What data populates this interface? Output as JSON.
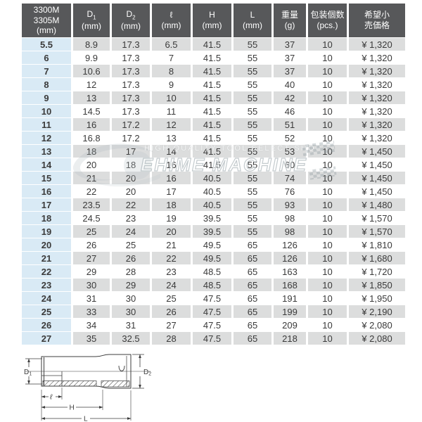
{
  "colors": {
    "header_bg": "#57585a",
    "header_text": "#ffffff",
    "row_gray": "#dcdddd",
    "row_white": "#ffffff",
    "size_column_bg": "#d9eaf5",
    "body_text": "#3a3a3a"
  },
  "table": {
    "model_header_lines": [
      "3300M",
      "3305M",
      "(mm)"
    ],
    "columns": [
      {
        "main": "D",
        "sub": "1",
        "unit": "(mm)"
      },
      {
        "main": "D",
        "sub": "2",
        "unit": "(mm)"
      },
      {
        "main": "ℓ",
        "sub": "",
        "unit": "(mm)"
      },
      {
        "main": "H",
        "sub": "",
        "unit": "(mm)"
      },
      {
        "main": "L",
        "sub": "",
        "unit": "(mm)"
      },
      {
        "main": "重量",
        "sub": "",
        "unit": "(g)"
      },
      {
        "main": "包装個数",
        "sub": "",
        "unit": "(pcs.)"
      },
      {
        "main": "希望小",
        "sub": "",
        "unit": "売価格"
      }
    ],
    "rows": [
      [
        "5.5",
        "8.9",
        "17.3",
        "6.5",
        "41.5",
        "55",
        "37",
        "10",
        "¥ 1,320"
      ],
      [
        "6",
        "9.9",
        "17.3",
        "7",
        "41.5",
        "55",
        "37",
        "10",
        "¥ 1,320"
      ],
      [
        "7",
        "10.6",
        "17.3",
        "8",
        "41.5",
        "55",
        "37",
        "10",
        "¥ 1,320"
      ],
      [
        "8",
        "12",
        "17.3",
        "9",
        "41.5",
        "55",
        "40",
        "10",
        "¥ 1,320"
      ],
      [
        "9",
        "13",
        "17.3",
        "10",
        "41.5",
        "55",
        "42",
        "10",
        "¥ 1,320"
      ],
      [
        "10",
        "14.5",
        "17.3",
        "11",
        "41.5",
        "55",
        "46",
        "10",
        "¥ 1,320"
      ],
      [
        "11",
        "16",
        "17.2",
        "12",
        "41.5",
        "55",
        "51",
        "10",
        "¥ 1,320"
      ],
      [
        "12",
        "16.8",
        "17.2",
        "13",
        "41.5",
        "55",
        "52",
        "10",
        "¥ 1,320"
      ],
      [
        "13",
        "18",
        "17",
        "14",
        "41.5",
        "55",
        "53",
        "10",
        "¥ 1,450"
      ],
      [
        "14",
        "20",
        "18",
        "16",
        "41.5",
        "55",
        "60",
        "10",
        "¥ 1,450"
      ],
      [
        "15",
        "21",
        "20",
        "16",
        "40.5",
        "55",
        "74",
        "10",
        "¥ 1,450"
      ],
      [
        "16",
        "22",
        "20",
        "17",
        "40.5",
        "55",
        "76",
        "10",
        "¥ 1,450"
      ],
      [
        "17",
        "23.5",
        "22",
        "18",
        "40.5",
        "55",
        "93",
        "10",
        "¥ 1,480"
      ],
      [
        "18",
        "24.5",
        "23",
        "19",
        "39.5",
        "55",
        "98",
        "10",
        "¥ 1,570"
      ],
      [
        "19",
        "25",
        "24",
        "20",
        "39.5",
        "55",
        "98",
        "10",
        "¥ 1,570"
      ],
      [
        "20",
        "26",
        "25",
        "21",
        "49.5",
        "65",
        "126",
        "10",
        "¥ 1,810"
      ],
      [
        "21",
        "27",
        "26",
        "22",
        "49.5",
        "65",
        "126",
        "10",
        "¥ 1,680"
      ],
      [
        "22",
        "29",
        "28",
        "23",
        "48.5",
        "65",
        "163",
        "10",
        "¥ 1,720"
      ],
      [
        "23",
        "30",
        "29",
        "24",
        "48.5",
        "65",
        "168",
        "10",
        "¥ 1,850"
      ],
      [
        "24",
        "31",
        "30",
        "25",
        "47.5",
        "65",
        "191",
        "10",
        "¥ 1,950"
      ],
      [
        "25",
        "33",
        "30",
        "26",
        "47.5",
        "65",
        "199",
        "10",
        "¥ 2,190"
      ],
      [
        "26",
        "34",
        "31",
        "27",
        "47.5",
        "65",
        "209",
        "10",
        "¥ 2,080"
      ],
      [
        "27",
        "35",
        "32.5",
        "28",
        "47.5",
        "65",
        "218",
        "10",
        "¥ 2,080"
      ]
    ]
  },
  "watermark": {
    "line1": "HIGH QUALITY TOOL SELECT SHOP",
    "line2": "EHIME MACHINE"
  },
  "diagram": {
    "d1_main": "D",
    "d1_sub": "1",
    "d2_main": "D",
    "d2_sub": "2",
    "hole_depth": "ℓ",
    "height_dim": "H",
    "length_dim": "L"
  }
}
